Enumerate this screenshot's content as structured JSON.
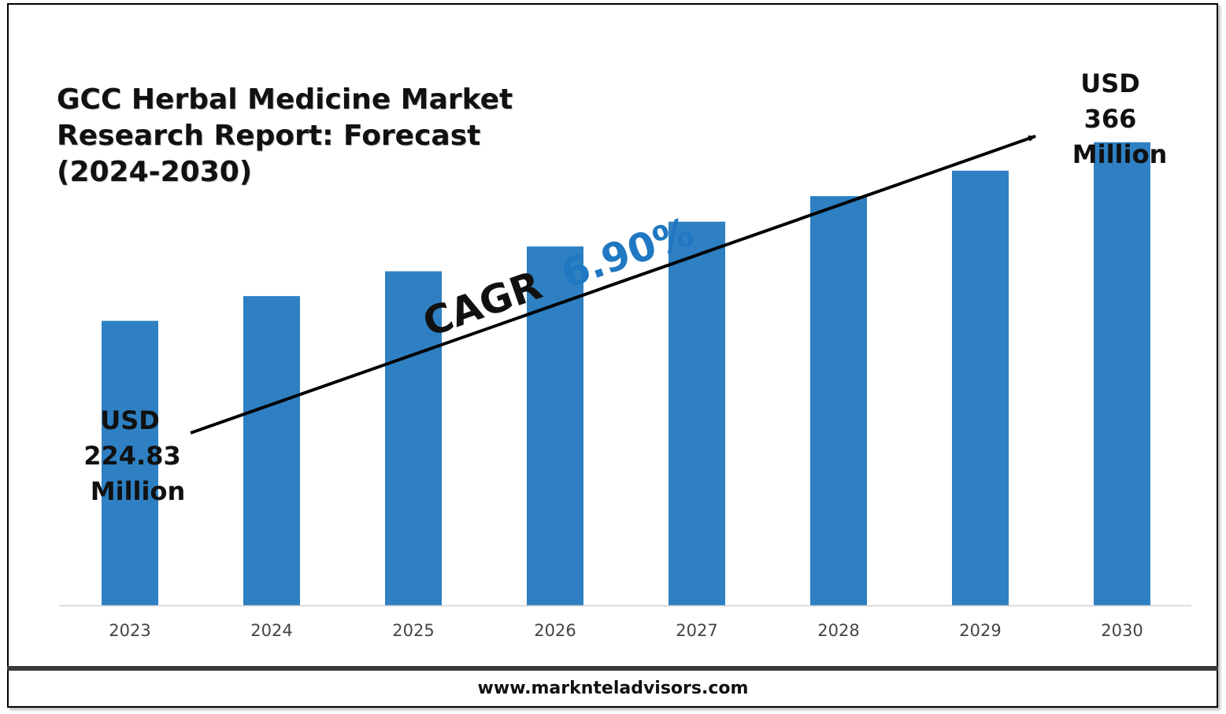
{
  "page": {
    "footer_url": "www.marknteladvisors.com"
  },
  "chart_data": {
    "type": "bar",
    "title_lines": [
      "GCC Herbal Medicine Market",
      "Research Report: Forecast",
      "(2024-2030)"
    ],
    "categories": [
      "2023",
      "2024",
      "2025",
      "2026",
      "2027",
      "2028",
      "2029",
      "2030"
    ],
    "values": [
      224.83,
      244.4,
      264.0,
      283.6,
      303.2,
      323.4,
      343.5,
      366
    ],
    "unit": "USD Million",
    "ylim": [
      0,
      400
    ],
    "grid": false,
    "bar_color": "#2e80c2",
    "start_label": [
      "USD",
      "224.83",
      "Million"
    ],
    "end_label": [
      "USD",
      "366",
      "Million"
    ],
    "cagr": {
      "prefix": "CAGR",
      "value": "6.90%",
      "prefix_color": "#111111",
      "value_color": "#1f78c1"
    }
  }
}
